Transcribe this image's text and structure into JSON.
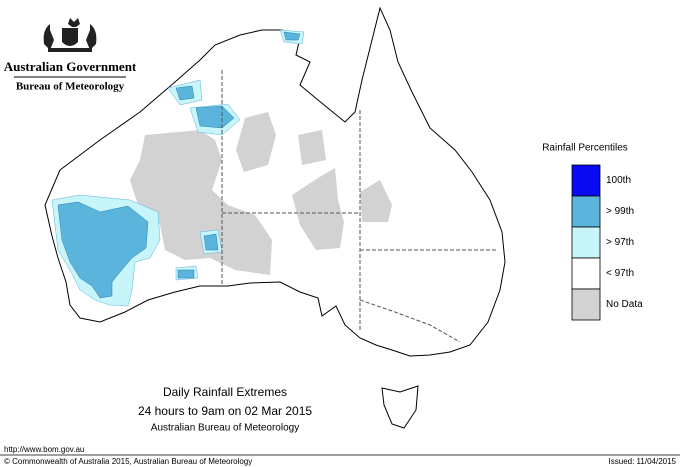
{
  "header": {
    "title": "Australian Government",
    "subtitle": "Bureau of Meteorology"
  },
  "legend": {
    "title": "Rainfall Percentiles",
    "items": [
      {
        "label": "100th",
        "color": "#0a0af0"
      },
      {
        "label": "> 99th",
        "color": "#5ab4dc"
      },
      {
        "label": "> 97th",
        "color": "#c8f5fa"
      },
      {
        "label": "< 97th",
        "color": "#ffffff"
      },
      {
        "label": "No Data",
        "color": "#d2d2d2"
      }
    ]
  },
  "caption": {
    "title": "Daily Rainfall Extremes",
    "period": "24 hours to 9am on 02 Mar 2015",
    "source": "Australian Bureau of Meteorology"
  },
  "footer": {
    "url": "http://www.bom.gov.au",
    "copyright": "© Commonwealth of Australia 2015, Australian Bureau of Meteorology",
    "issued": "Issued: 11/04/2015"
  }
}
